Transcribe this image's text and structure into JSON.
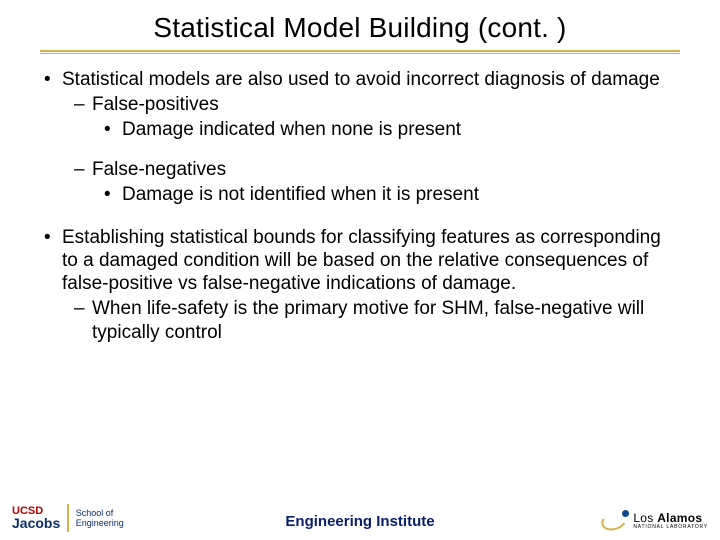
{
  "colors": {
    "accent_gold": "#d4b24a",
    "footer_navy": "#091e6d",
    "ucsd_red": "#b30000",
    "ucsd_navy": "#0b2e6f",
    "la_dot": "#0b4a8a",
    "text": "#000000",
    "background": "#ffffff"
  },
  "title": "Statistical Model Building (cont. )",
  "bullets": {
    "p1": "Statistical models are also used to avoid incorrect diagnosis of damage",
    "p1a": "False-positives",
    "p1a1": "Damage indicated when none is present",
    "p1b": "False-negatives",
    "p1b1": "Damage is not identified when it is present",
    "p2": "Establishing statistical bounds for classifying features as corresponding to a damaged condition will be based on the relative consequences of false-positive vs false-negative indications of damage.",
    "p2a": "When life-safety is the primary motive for SHM, false-negative will typically control"
  },
  "footer": {
    "center": "Engineering Institute",
    "left": {
      "ucsd": "UCSD",
      "school_of": "School of",
      "jacobs": "Jacobs",
      "engineering": "Engineering"
    },
    "right": {
      "los": "Los",
      "alamos": "Alamos",
      "sub": "NATIONAL LABORATORY"
    }
  }
}
